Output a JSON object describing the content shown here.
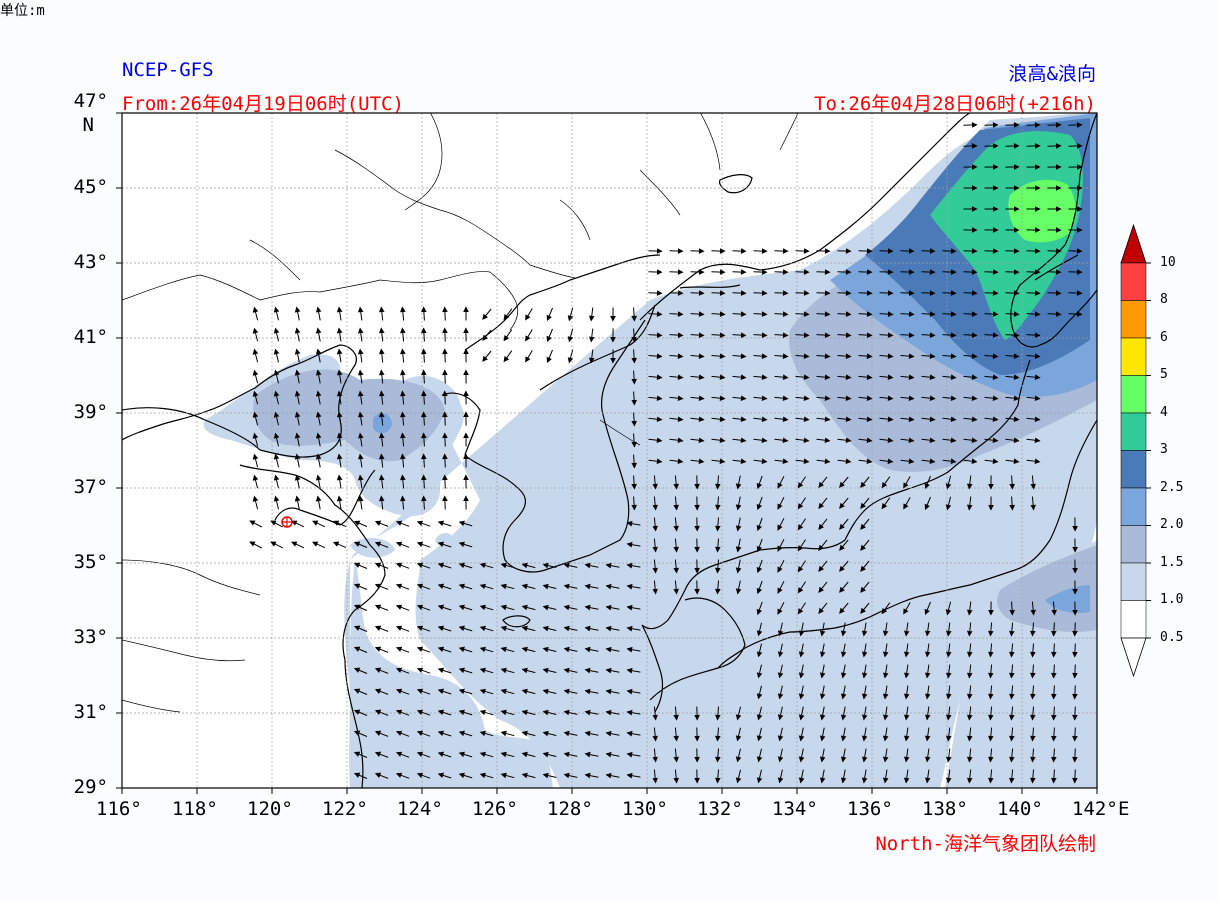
{
  "header": {
    "model": "NCEP-GFS",
    "product": "浪高&浪向",
    "from": "From:26年04月19日06时(UTC)",
    "to": "To:26年04月28日06时(+216h)"
  },
  "footer": {
    "credit": "North-海洋气象团队绘制"
  },
  "axes": {
    "lat_labels": [
      "47°",
      "45°",
      "43°",
      "41°",
      "39°",
      "37°",
      "35°",
      "33°",
      "31°",
      "29°"
    ],
    "lat_unit": "N",
    "lon_labels": [
      "116°",
      "118°",
      "120°",
      "122°",
      "124°",
      "126°",
      "128°",
      "130°",
      "132°",
      "134°",
      "136°",
      "138°",
      "140°",
      "142°"
    ],
    "lon_unit": "E",
    "lat_range": [
      29,
      47
    ],
    "lon_range": [
      116,
      142
    ]
  },
  "colorbar": {
    "unit_label": "单位:m",
    "levels": [
      "10",
      "8",
      "6",
      "5",
      "4",
      "3",
      "2.5",
      "2.0",
      "1.5",
      "1.0",
      "0.5"
    ],
    "colors": [
      "#c00000",
      "#ff4040",
      "#ff9900",
      "#ffe600",
      "#66ff66",
      "#33cc99",
      "#4a7ab8",
      "#7aa6dc",
      "#aabbd9",
      "#c8d8ec",
      "#ffffff"
    ]
  },
  "map": {
    "grid": true,
    "grid_color": "#a0a0a0",
    "marker_color": "#ff0000"
  }
}
